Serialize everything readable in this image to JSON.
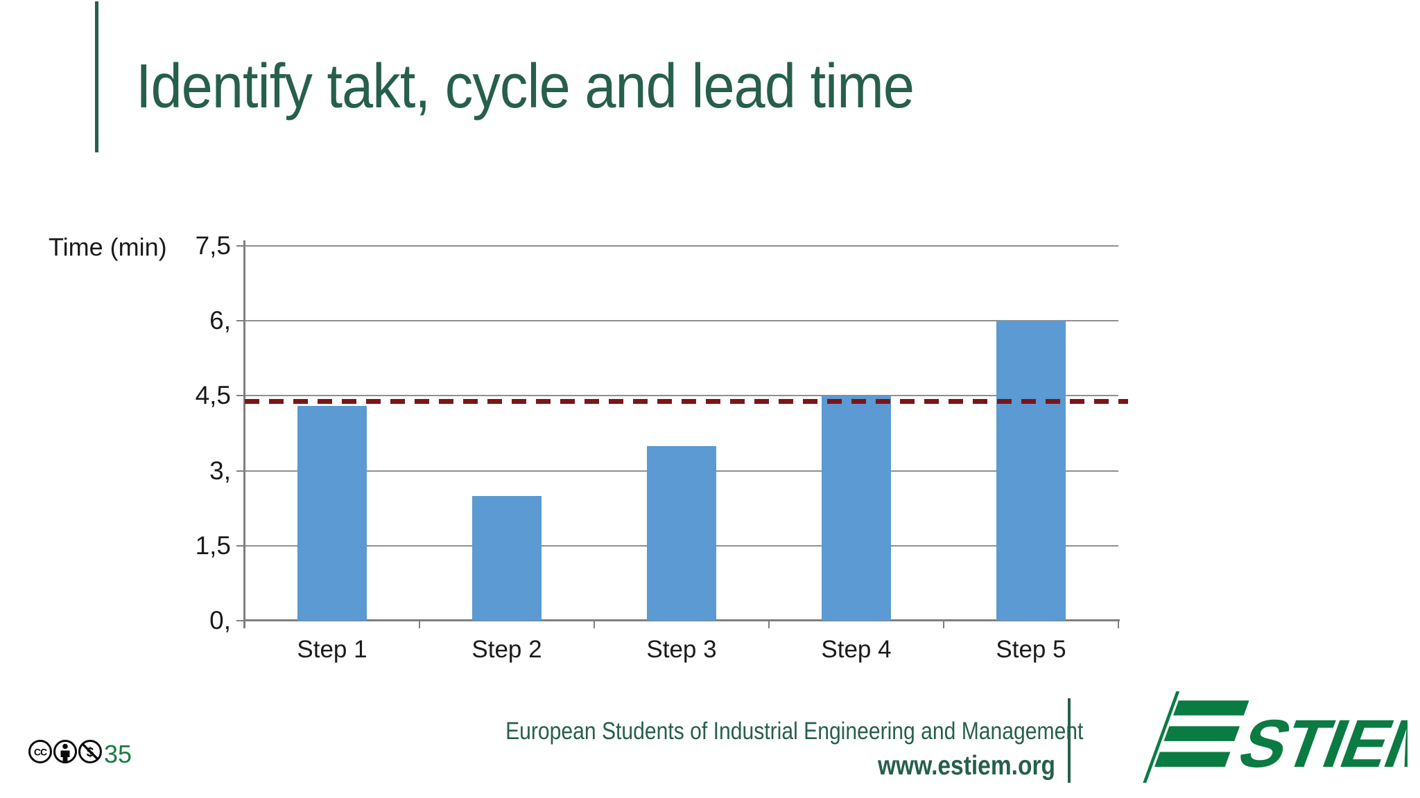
{
  "slide": {
    "title": "Identify takt, cycle and lead time",
    "page_number": "35"
  },
  "footer": {
    "org_line": "European Students of Industrial Engineering and Management",
    "url": "www.estiem.org",
    "logo_text": "ESTIEM",
    "license_icons": [
      "cc-icon",
      "attribution-person-icon",
      "non-commercial-icon"
    ]
  },
  "colors": {
    "title_green": "#265f4c",
    "footer_green": "#265f4c",
    "logo_green": "#0a7b42",
    "page_number_green": "#1b7a45",
    "bar_blue": "#5b9ad3",
    "gridline_gray": "#8f8f8f",
    "axis_gray": "#7f7f7f",
    "takt_line_red": "#7d1417",
    "label_dark": "#1a1a1a"
  },
  "chart_data": {
    "type": "bar",
    "title": "",
    "xlabel": "",
    "ylabel": "Time (min)",
    "categories": [
      "Step 1",
      "Step 2",
      "Step 3",
      "Step 4",
      "Step 5"
    ],
    "values": [
      4.3,
      2.5,
      3.5,
      4.5,
      6.0
    ],
    "ylim": [
      0,
      7.5
    ],
    "yticks": [
      0,
      1.5,
      3,
      4.5,
      6,
      7.5
    ],
    "ytick_labels": [
      "0,",
      "1,5",
      "3,",
      "4,5",
      "6,",
      "7,5"
    ],
    "grid": true,
    "legend": false,
    "reference_line": {
      "value": 4.4,
      "style": "dashed"
    }
  }
}
